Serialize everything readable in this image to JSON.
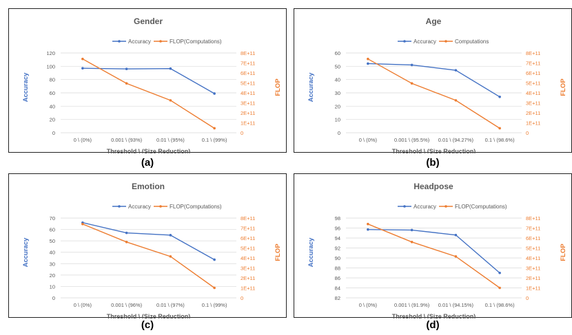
{
  "colors": {
    "accuracy": "#4472C4",
    "flop": "#ED7D31",
    "grid": "#d9d9d9",
    "axis_text": "#595959",
    "title_text": "#595959"
  },
  "chart_data": [
    {
      "type": "line",
      "caption": "(a)",
      "title": "Gender",
      "xlabel": "Threshold \\ (Size Reduction)",
      "ylabel_left": "Accuracy",
      "ylabel_right": "FLOP",
      "categories": [
        "0 \\ (0%)",
        "0.001 \\ (93%)",
        "0.01 \\ (95%)",
        "0.1 \\ (99%)"
      ],
      "left_ticks": [
        "0",
        "20",
        "40",
        "60",
        "80",
        "100",
        "120"
      ],
      "right_ticks": [
        "0",
        "1E+11",
        "2E+11",
        "3E+11",
        "4E+11",
        "5E+11",
        "6E+11",
        "7E+11",
        "8E+11"
      ],
      "ylim_left": [
        0,
        120
      ],
      "ylim_right": [
        0,
        800000000000.0
      ],
      "legend_position": "top",
      "series": [
        {
          "name": "Accuracy",
          "axis": "left",
          "values": [
            97,
            96,
            96.5,
            59
          ]
        },
        {
          "name": "FLOP(Computations)",
          "axis": "right",
          "values": [
            740000000000.0,
            495000000000.0,
            325000000000.0,
            45000000000.0
          ]
        }
      ]
    },
    {
      "type": "line",
      "caption": "(b)",
      "title": "Age",
      "xlabel": "Threshold \\ (Size Reduction)",
      "ylabel_left": "Accuracy",
      "ylabel_right": "FLOP",
      "categories": [
        "0 \\ (0%)",
        "0.001 \\ (95.5%)",
        "0.01 \\ (94.27%)",
        "0.1 \\ (98.6%)"
      ],
      "left_ticks": [
        "0",
        "10",
        "20",
        "30",
        "40",
        "50",
        "60"
      ],
      "right_ticks": [
        "0",
        "1E+11",
        "2E+11",
        "3E+11",
        "4E+11",
        "5E+11",
        "6E+11",
        "7E+11",
        "8E+11"
      ],
      "ylim_left": [
        0,
        60
      ],
      "ylim_right": [
        0,
        800000000000.0
      ],
      "legend_position": "top",
      "series": [
        {
          "name": "Accuracy",
          "axis": "left",
          "values": [
            52,
            51,
            47,
            27
          ]
        },
        {
          "name": "Computations",
          "axis": "right",
          "values": [
            740000000000.0,
            495000000000.0,
            325000000000.0,
            45000000000.0
          ]
        }
      ]
    },
    {
      "type": "line",
      "caption": "(c)",
      "title": "Emotion",
      "xlabel": "Threshold \\ (Size Reduction)",
      "ylabel_left": "Accuracy",
      "ylabel_right": "FLOP",
      "categories": [
        "0 \\ (0%)",
        "0.001 \\ (96%)",
        "0.01 \\ (97%)",
        "0.1 \\ (99%)"
      ],
      "left_ticks": [
        "0",
        "10",
        "20",
        "30",
        "40",
        "50",
        "60",
        "70"
      ],
      "right_ticks": [
        "0",
        "1E+11",
        "2E+11",
        "3E+11",
        "4E+11",
        "5E+11",
        "6E+11",
        "7E+11",
        "8E+11"
      ],
      "ylim_left": [
        0,
        70
      ],
      "ylim_right": [
        0,
        800000000000.0
      ],
      "legend_position": "top",
      "series": [
        {
          "name": "Accuracy",
          "axis": "left",
          "values": [
            66,
            57,
            55,
            33.5
          ]
        },
        {
          "name": "FLOP(Computations)",
          "axis": "right",
          "values": [
            740000000000.0,
            560000000000.0,
            415000000000.0,
            100000000000.0
          ]
        }
      ]
    },
    {
      "type": "line",
      "caption": "(d)",
      "title": "Headpose",
      "xlabel": "Threshold \\ (Size Reduction)",
      "ylabel_left": "Accuracy",
      "ylabel_right": "FLOP",
      "categories": [
        "0 \\ (0%)",
        "0.001 \\ (91.9%)",
        "0.01 \\ (94.15%)",
        "0.1 \\ (98.6%)"
      ],
      "left_ticks": [
        "82",
        "84",
        "86",
        "88",
        "90",
        "92",
        "94",
        "96",
        "98"
      ],
      "right_ticks": [
        "0",
        "1E+11",
        "2E+11",
        "3E+11",
        "4E+11",
        "5E+11",
        "6E+11",
        "7E+11",
        "8E+11"
      ],
      "ylim_left": [
        82,
        98
      ],
      "ylim_right": [
        0,
        800000000000.0
      ],
      "legend_position": "top",
      "series": [
        {
          "name": "Accuracy",
          "axis": "left",
          "values": [
            95.7,
            95.6,
            94.6,
            87
          ]
        },
        {
          "name": "FLOP(Computations)",
          "axis": "right",
          "values": [
            740000000000.0,
            560000000000.0,
            415000000000.0,
            100000000000.0
          ]
        }
      ]
    }
  ]
}
